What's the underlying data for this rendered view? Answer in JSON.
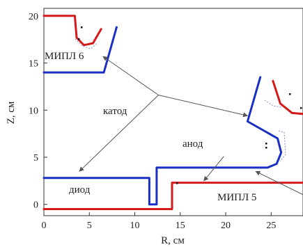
{
  "diagram": {
    "x_axis": {
      "label": "R, см",
      "range": [
        0,
        28.5
      ],
      "ticks": [
        "0",
        "5",
        "10",
        "15",
        "20",
        "25"
      ]
    },
    "y_axis": {
      "label": "Z, см",
      "range": [
        -1.2,
        20.8
      ],
      "ticks": [
        "0",
        "5",
        "10",
        "15",
        "20"
      ]
    },
    "colors": {
      "cathode": "#1a2fc4",
      "anode": "#d41a1a",
      "frame": "#333333",
      "arrow": "#555555",
      "dashed": "#8888cc"
    },
    "labels": {
      "mipl6": "МИПЛ 6",
      "mipl5": "МИПЛ 5",
      "cathode": "катод",
      "anode": "анод",
      "diode": "диод"
    },
    "cathode_bottom": [
      [
        0,
        2.8
      ],
      [
        11.6,
        2.8
      ],
      [
        11.6,
        0.0
      ],
      [
        12.4,
        0.0
      ],
      [
        12.4,
        3.9
      ],
      [
        24.6,
        3.9
      ],
      [
        25.6,
        4.3
      ],
      [
        26.1,
        5.5
      ],
      [
        25.7,
        7.0
      ],
      [
        22.4,
        8.8
      ],
      [
        23.8,
        13.5
      ]
    ],
    "cathode_top": [
      [
        0,
        14.0
      ],
      [
        6.6,
        14.0
      ],
      [
        8.0,
        18.8
      ]
    ],
    "anode_bottom": [
      [
        0,
        -0.5
      ],
      [
        14.1,
        -0.5
      ],
      [
        14.1,
        2.3
      ],
      [
        28.5,
        2.3
      ]
    ],
    "anode_right_lip": [
      [
        25.2,
        13.1
      ],
      [
        26.0,
        10.7
      ],
      [
        27.3,
        9.7
      ],
      [
        28.5,
        9.6
      ]
    ],
    "anode_top": [
      [
        0,
        20.0
      ],
      [
        3.4,
        20.0
      ],
      [
        3.6,
        17.7
      ],
      [
        4.4,
        16.9
      ],
      [
        5.4,
        17.1
      ],
      [
        6.3,
        18.6
      ]
    ],
    "arrows": {
      "cathode": [
        {
          "from": [
            12.6,
            11.6
          ],
          "to": [
            6.5,
            15.7
          ]
        },
        {
          "from": [
            12.6,
            11.6
          ],
          "to": [
            3.9,
            3.5
          ]
        },
        {
          "from": [
            12.6,
            11.6
          ],
          "to": [
            22.4,
            9.4
          ]
        }
      ],
      "anode": [
        {
          "from": [
            19.8,
            5.1
          ],
          "to": [
            17.6,
            2.5
          ]
        }
      ],
      "mipl5": [
        {
          "from": [
            29.2,
            0.7
          ],
          "to": [
            23.3,
            3.5
          ]
        }
      ]
    }
  }
}
